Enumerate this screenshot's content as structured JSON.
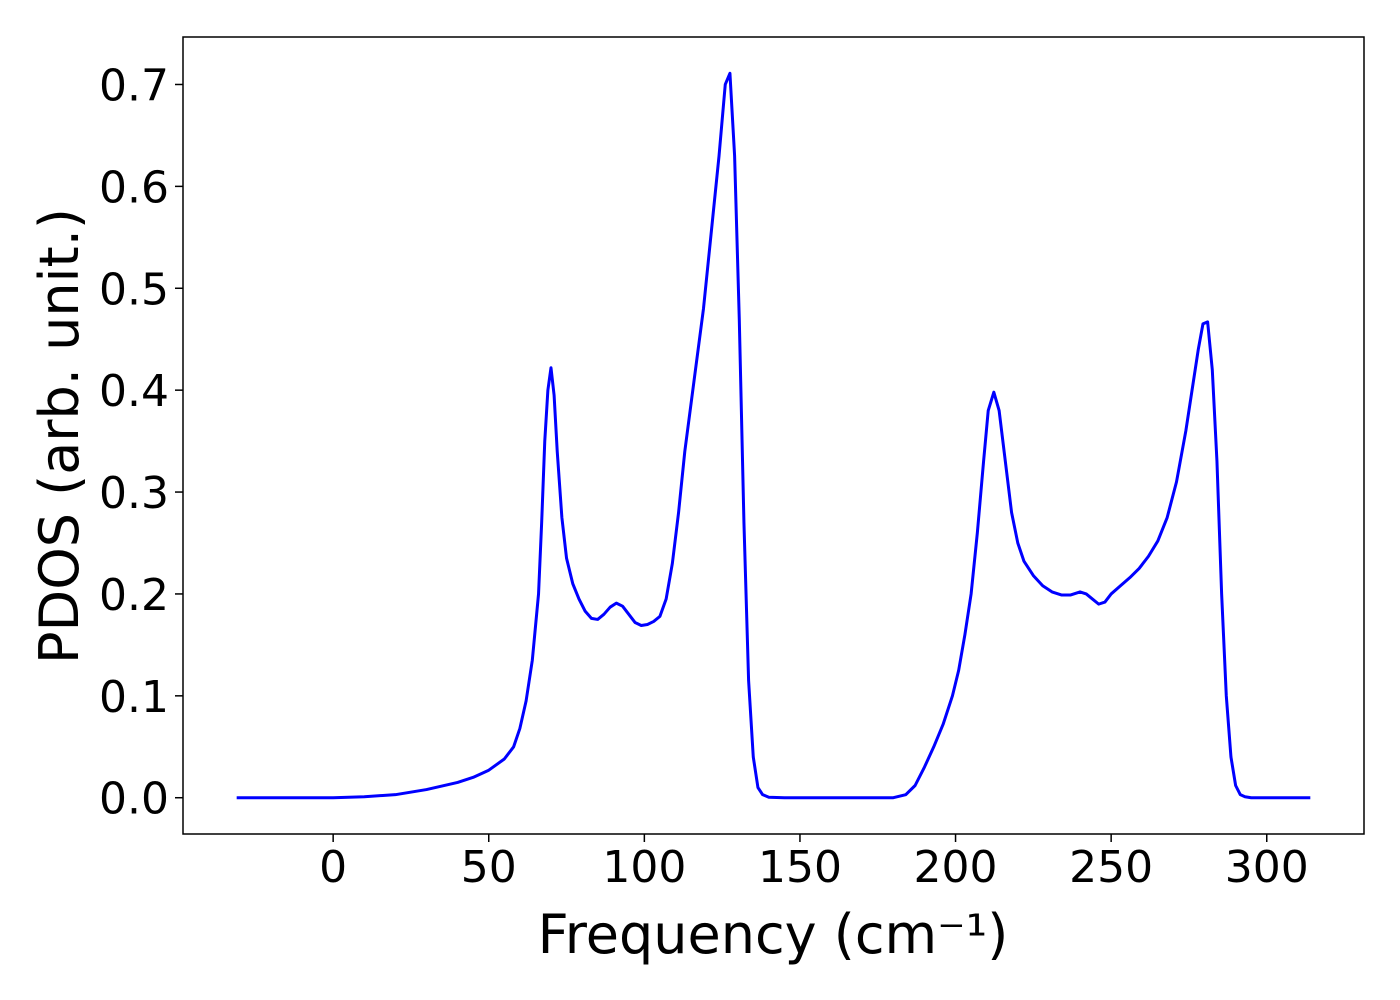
{
  "chart_data": {
    "type": "line",
    "xlabel": "Frequency (cm⁻¹)",
    "ylabel": "PDOS (arb. unit.)",
    "xlim": [
      -48.25,
      331.25
    ],
    "ylim": [
      -0.0356,
      0.7466
    ],
    "xticks": [
      0,
      50,
      100,
      150,
      200,
      250,
      300
    ],
    "yticks": [
      {
        "value": 0,
        "label": "0.0"
      },
      0.1,
      0.2,
      0.3,
      0.4,
      0.5,
      0.6,
      0.7
    ],
    "grid": false,
    "series": [
      {
        "color": "#0000ff",
        "x": [
          -31,
          0,
          10,
          20,
          30,
          40,
          45,
          50,
          55,
          58,
          60,
          62,
          64,
          66,
          67,
          68,
          69,
          70,
          71,
          72,
          73.5,
          75,
          77,
          79,
          81,
          83,
          85,
          87,
          89,
          91,
          93,
          95,
          97,
          99,
          101,
          103,
          105,
          107,
          109,
          111,
          113,
          116,
          119,
          122,
          124,
          126,
          127.5,
          129,
          130.5,
          132,
          133.5,
          135,
          136.5,
          138,
          140,
          145,
          180,
          184,
          187,
          190,
          193,
          196,
          199,
          201,
          203,
          205,
          207,
          209,
          210.5,
          212.3,
          214,
          216,
          218,
          220,
          222,
          225,
          228,
          231,
          234,
          237,
          240,
          242,
          244,
          246,
          248,
          250,
          253,
          256,
          259,
          262,
          265,
          268,
          271,
          274,
          276,
          278,
          279.5,
          281,
          282.5,
          284,
          285.5,
          287,
          288.5,
          290,
          291.5,
          293,
          295,
          314
        ],
        "values": [
          0,
          0,
          0.001,
          0.003,
          0.008,
          0.015,
          0.02,
          0.027,
          0.038,
          0.05,
          0.068,
          0.095,
          0.135,
          0.2,
          0.27,
          0.35,
          0.4,
          0.422,
          0.395,
          0.34,
          0.275,
          0.235,
          0.21,
          0.195,
          0.183,
          0.176,
          0.175,
          0.18,
          0.187,
          0.191,
          0.188,
          0.18,
          0.172,
          0.169,
          0.17,
          0.173,
          0.178,
          0.195,
          0.23,
          0.28,
          0.34,
          0.41,
          0.48,
          0.57,
          0.63,
          0.7,
          0.711,
          0.63,
          0.47,
          0.27,
          0.115,
          0.04,
          0.01,
          0.003,
          0.0005,
          0,
          0,
          0.003,
          0.012,
          0.03,
          0.05,
          0.072,
          0.1,
          0.125,
          0.16,
          0.2,
          0.26,
          0.33,
          0.38,
          0.398,
          0.38,
          0.33,
          0.28,
          0.25,
          0.232,
          0.218,
          0.208,
          0.202,
          0.199,
          0.199,
          0.202,
          0.2,
          0.195,
          0.19,
          0.192,
          0.2,
          0.208,
          0.216,
          0.225,
          0.237,
          0.252,
          0.275,
          0.31,
          0.36,
          0.4,
          0.44,
          0.465,
          0.467,
          0.42,
          0.33,
          0.2,
          0.1,
          0.04,
          0.012,
          0.003,
          0.001,
          0,
          0
        ]
      }
    ]
  }
}
